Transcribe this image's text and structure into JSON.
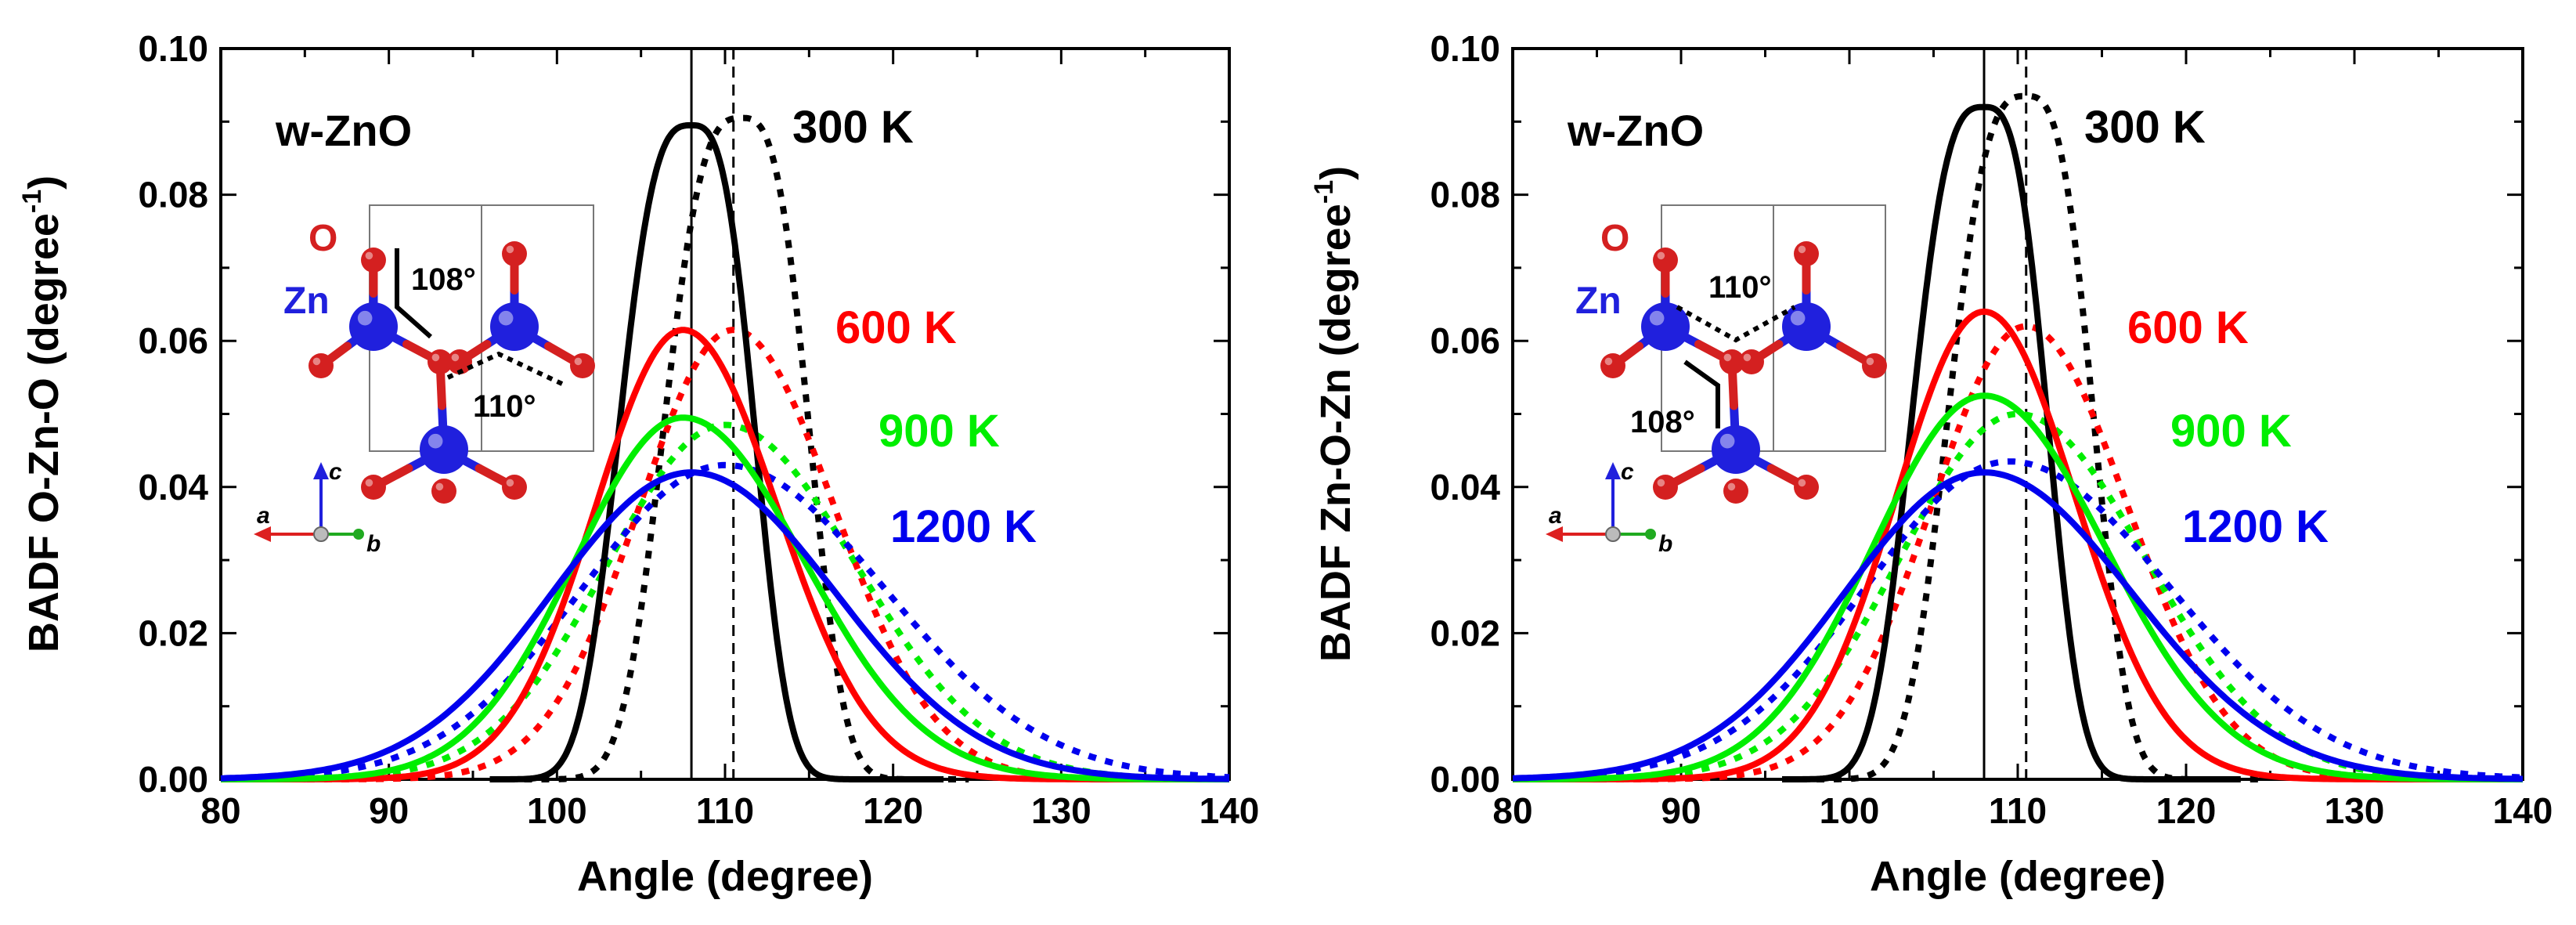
{
  "colors": {
    "k300": "#000000",
    "k600": "#ff0000",
    "k900": "#00ee00",
    "k1200": "#0000ee",
    "oxygen": "#d42020",
    "zinc": "#2020dd"
  },
  "chart_data": [
    {
      "type": "line",
      "panel": "left",
      "title": "",
      "xlabel": "Angle (degree)",
      "ylabel": "BADF O-Zn-O (degree",
      "ylabel_sup": "-1",
      "ylabel_close": ")",
      "xlim": [
        80,
        140
      ],
      "ylim": [
        0,
        0.1
      ],
      "xticks": [
        "80",
        "90",
        "100",
        "110",
        "120",
        "130",
        "140"
      ],
      "yticks": [
        "0.00",
        "0.02",
        "0.04",
        "0.06",
        "0.08",
        "0.10"
      ],
      "sample_label": "w-ZnO",
      "reference_lines": [
        {
          "x": 108,
          "style": "solid"
        },
        {
          "x": 110.5,
          "style": "dashed"
        }
      ],
      "temperature_labels": [
        {
          "text": "300 K",
          "color": "#000000"
        },
        {
          "text": "600 K",
          "color": "#ff0000"
        },
        {
          "text": "900 K",
          "color": "#00ee00"
        },
        {
          "text": "1200 K",
          "color": "#0000ee"
        }
      ],
      "inset": {
        "oxygen_label": "O",
        "zinc_label": "Zn",
        "angle_a": "108°",
        "angle_b": "110°",
        "axis_c": "c",
        "axis_a": "a",
        "axis_b": "b"
      },
      "series": [
        {
          "name": "300 K",
          "color": "#000000",
          "style": "solid",
          "shape": "sg",
          "peak": 0.0895,
          "mu": 108,
          "sl": 4.0,
          "sr": 3.5,
          "x0": 96,
          "x1": 123
        },
        {
          "name": "600 K",
          "color": "#ff0000",
          "style": "solid",
          "shape": "g",
          "peak": 0.0615,
          "mu": 107.5,
          "sl": 5.2,
          "sr": 5.6,
          "x0": 80,
          "x1": 140
        },
        {
          "name": "900 K",
          "color": "#00ee00",
          "style": "solid",
          "shape": "g",
          "peak": 0.0495,
          "mu": 107.5,
          "sl": 6.4,
          "sr": 7.2,
          "x0": 80,
          "x1": 140
        },
        {
          "name": "1200 K",
          "color": "#0000ee",
          "style": "solid",
          "shape": "g",
          "peak": 0.042,
          "mu": 108,
          "sl": 8.3,
          "sr": 8.6,
          "x0": 80,
          "x1": 140
        },
        {
          "name": "300 K",
          "color": "#000000",
          "style": "dotted",
          "shape": "sg",
          "peak": 0.0905,
          "mu": 111,
          "sl": 4.3,
          "sr": 3.7,
          "x0": 96,
          "x1": 124.5
        },
        {
          "name": "600 K",
          "color": "#ff0000",
          "style": "dotted",
          "shape": "g",
          "peak": 0.0615,
          "mu": 110.5,
          "sl": 5.6,
          "sr": 6.0,
          "x0": 80,
          "x1": 140
        },
        {
          "name": "900 K",
          "color": "#00ee00",
          "style": "dotted",
          "shape": "g",
          "peak": 0.0485,
          "mu": 110,
          "sl": 7.0,
          "sr": 7.8,
          "x0": 80,
          "x1": 140
        },
        {
          "name": "1200 K",
          "color": "#0000ee",
          "style": "dotted",
          "shape": "g",
          "peak": 0.043,
          "mu": 110,
          "sl": 8.5,
          "sr": 9.5,
          "x0": 80,
          "x1": 140
        }
      ]
    },
    {
      "type": "line",
      "panel": "right",
      "title": "",
      "xlabel": "Angle (degree)",
      "ylabel": "BADF Zn-O-Zn (degree",
      "ylabel_sup": "-1",
      "ylabel_close": ")",
      "xlim": [
        80,
        140
      ],
      "ylim": [
        0,
        0.1
      ],
      "xticks": [
        "80",
        "90",
        "100",
        "110",
        "120",
        "130",
        "140"
      ],
      "yticks": [
        "0.00",
        "0.02",
        "0.04",
        "0.06",
        "0.08",
        "0.10"
      ],
      "sample_label": "w-ZnO",
      "reference_lines": [
        {
          "x": 108,
          "style": "solid"
        },
        {
          "x": 110.5,
          "style": "dashed"
        }
      ],
      "temperature_labels": [
        {
          "text": "300 K",
          "color": "#000000"
        },
        {
          "text": "600 K",
          "color": "#ff0000"
        },
        {
          "text": "900 K",
          "color": "#00ee00"
        },
        {
          "text": "1200 K",
          "color": "#0000ee"
        }
      ],
      "inset": {
        "oxygen_label": "O",
        "zinc_label": "Zn",
        "angle_a": "110°",
        "angle_b": "108°",
        "axis_c": "c",
        "axis_a": "a",
        "axis_b": "b"
      },
      "series": [
        {
          "name": "300 K",
          "color": "#000000",
          "style": "solid",
          "shape": "sg",
          "peak": 0.092,
          "mu": 108,
          "sl": 4.0,
          "sr": 3.5,
          "x0": 96,
          "x1": 123
        },
        {
          "name": "600 K",
          "color": "#ff0000",
          "style": "solid",
          "shape": "g",
          "peak": 0.064,
          "mu": 108,
          "sl": 5.2,
          "sr": 5.4,
          "x0": 80,
          "x1": 140
        },
        {
          "name": "900 K",
          "color": "#00ee00",
          "style": "solid",
          "shape": "g",
          "peak": 0.0525,
          "mu": 108,
          "sl": 6.6,
          "sr": 7.2,
          "x0": 80,
          "x1": 140
        },
        {
          "name": "1200 K",
          "color": "#0000ee",
          "style": "solid",
          "shape": "g",
          "peak": 0.042,
          "mu": 108,
          "sl": 8.3,
          "sr": 8.8,
          "x0": 80,
          "x1": 140
        },
        {
          "name": "300 K",
          "color": "#000000",
          "style": "dotted",
          "shape": "sg",
          "peak": 0.0935,
          "mu": 110.5,
          "sl": 4.3,
          "sr": 3.7,
          "x0": 96,
          "x1": 124.5
        },
        {
          "name": "600 K",
          "color": "#ff0000",
          "style": "dotted",
          "shape": "g",
          "peak": 0.062,
          "mu": 110.5,
          "sl": 5.6,
          "sr": 6.0,
          "x0": 80,
          "x1": 140
        },
        {
          "name": "900 K",
          "color": "#00ee00",
          "style": "dotted",
          "shape": "g",
          "peak": 0.05,
          "mu": 110,
          "sl": 7.0,
          "sr": 7.6,
          "x0": 80,
          "x1": 140
        },
        {
          "name": "1200 K",
          "color": "#0000ee",
          "style": "dotted",
          "shape": "g",
          "peak": 0.0435,
          "mu": 109.5,
          "sl": 8.5,
          "sr": 9.5,
          "x0": 80,
          "x1": 140
        }
      ]
    }
  ]
}
